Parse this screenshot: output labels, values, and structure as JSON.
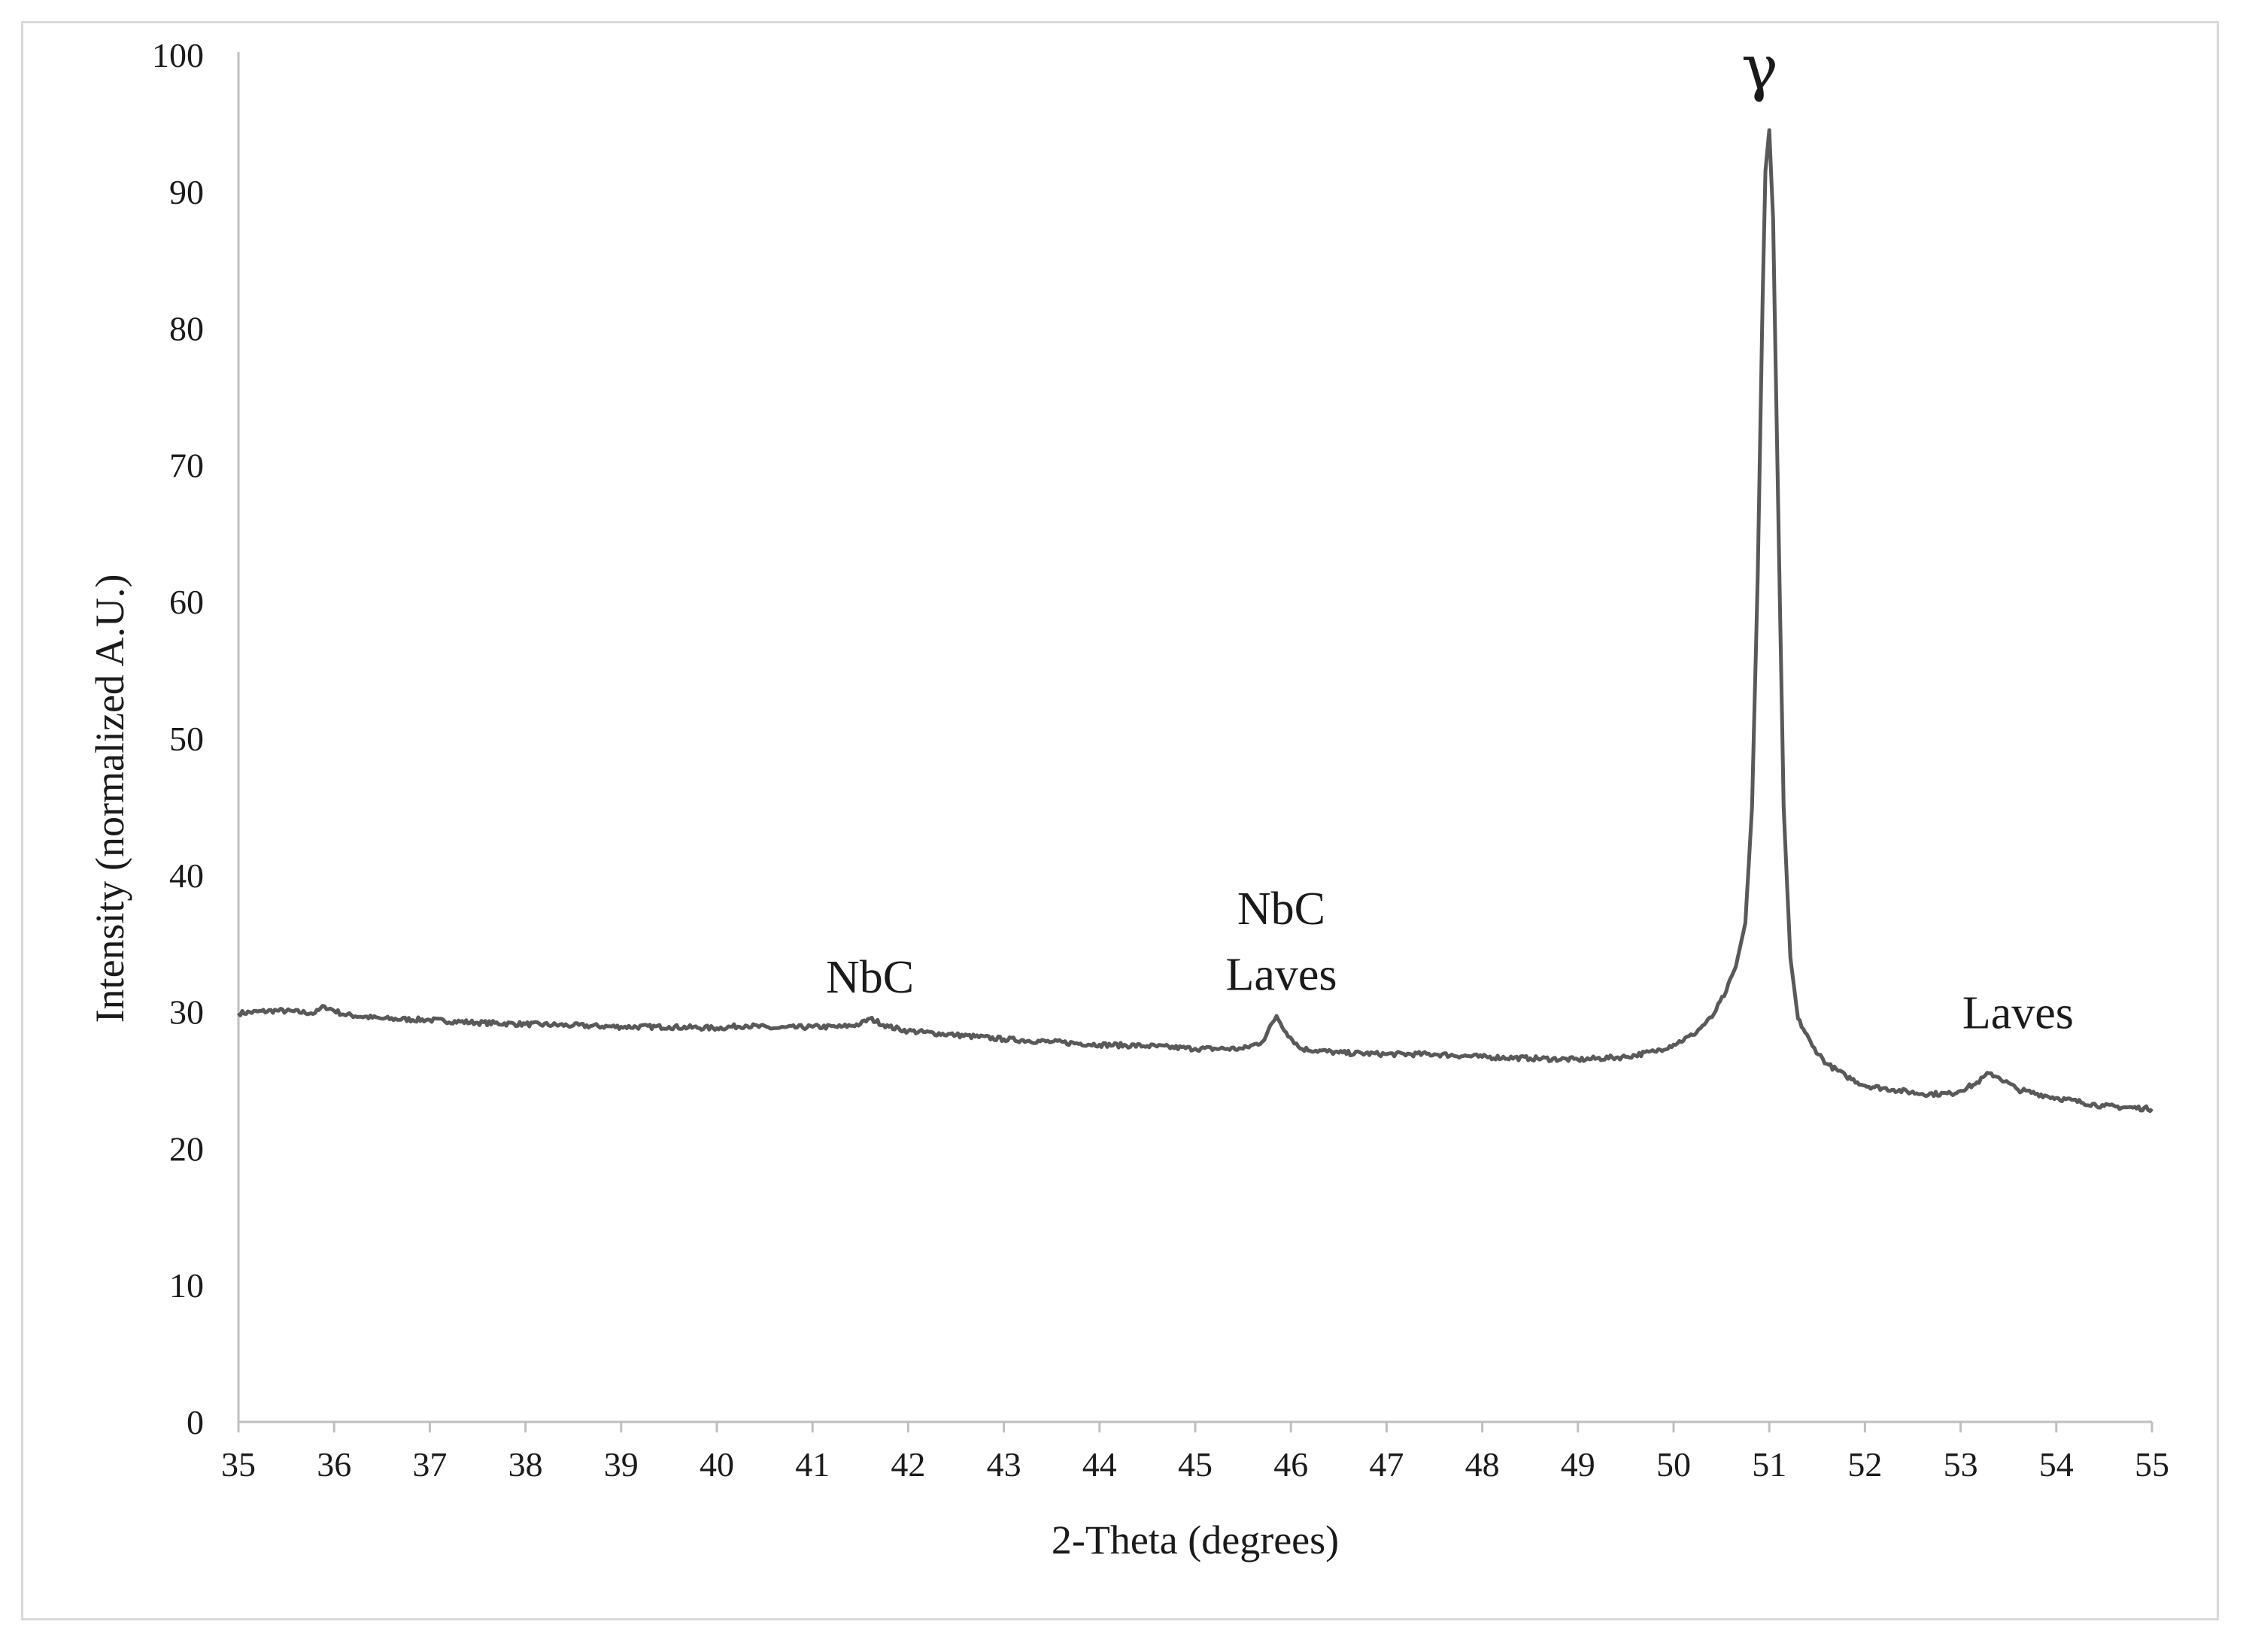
{
  "chart_data": {
    "type": "line",
    "title": "",
    "xlabel": "2-Theta (degrees)",
    "ylabel": "Intensity (normalized A.U.)",
    "xlim": [
      35,
      55
    ],
    "ylim": [
      0,
      100
    ],
    "x_ticks": [
      "35",
      "36",
      "37",
      "38",
      "39",
      "40",
      "41",
      "42",
      "43",
      "44",
      "45",
      "46",
      "47",
      "48",
      "49",
      "50",
      "51",
      "52",
      "53",
      "54",
      "55"
    ],
    "y_ticks": [
      "0",
      "10",
      "20",
      "30",
      "40",
      "50",
      "60",
      "70",
      "80",
      "90",
      "100"
    ],
    "grid": false,
    "legend": "none",
    "line_color": "#595959",
    "series": [
      {
        "x": [
          35.0,
          35.4,
          35.8,
          35.9,
          36.1,
          36.5,
          37.0,
          37.5,
          38.0,
          38.5,
          39.0,
          39.5,
          40.0,
          40.3,
          40.6,
          41.0,
          41.3,
          41.5,
          41.6,
          41.8,
          42.0,
          42.5,
          43.0,
          43.5,
          44.0,
          44.5,
          45.0,
          45.5,
          45.7,
          45.85,
          45.95,
          46.1,
          46.5,
          47.0,
          47.5,
          48.0,
          48.5,
          49.0,
          49.5,
          49.8,
          50.0,
          50.2,
          50.4,
          50.55,
          50.65,
          50.75,
          50.82,
          50.88,
          50.93,
          50.96,
          51.0,
          51.04,
          51.08,
          51.15,
          51.22,
          51.3,
          51.45,
          51.6,
          51.8,
          52.0,
          52.3,
          52.6,
          52.9,
          53.15,
          53.3,
          53.4,
          53.6,
          54.0,
          54.5,
          55.0
        ],
        "y": [
          29.9,
          30.1,
          29.9,
          30.4,
          29.8,
          29.5,
          29.4,
          29.2,
          29.1,
          29.0,
          28.9,
          28.9,
          28.8,
          29.0,
          28.8,
          28.9,
          28.9,
          29.1,
          29.5,
          28.9,
          28.6,
          28.3,
          28.0,
          27.8,
          27.6,
          27.5,
          27.3,
          27.3,
          27.8,
          29.7,
          28.5,
          27.3,
          27.0,
          26.9,
          26.9,
          26.7,
          26.6,
          26.5,
          26.7,
          27.1,
          27.6,
          28.3,
          29.6,
          31.5,
          33.3,
          36.5,
          45.0,
          62.0,
          82.0,
          91.5,
          94.5,
          88.0,
          72.0,
          45.0,
          34.0,
          29.5,
          27.5,
          26.2,
          25.3,
          24.6,
          24.3,
          24.0,
          24.0,
          24.7,
          25.5,
          25.2,
          24.3,
          23.7,
          23.1,
          22.9
        ]
      }
    ],
    "annotations": [
      {
        "text": "NbC",
        "x": 41.6,
        "y": 31.4
      },
      {
        "text": "NbC",
        "x": 45.9,
        "y": 36.4
      },
      {
        "text": "Laves",
        "x": 45.9,
        "y": 31.6
      },
      {
        "text": "γ",
        "x": 50.9,
        "y": 97.5
      },
      {
        "text": "Laves",
        "x": 53.6,
        "y": 28.8
      }
    ]
  }
}
